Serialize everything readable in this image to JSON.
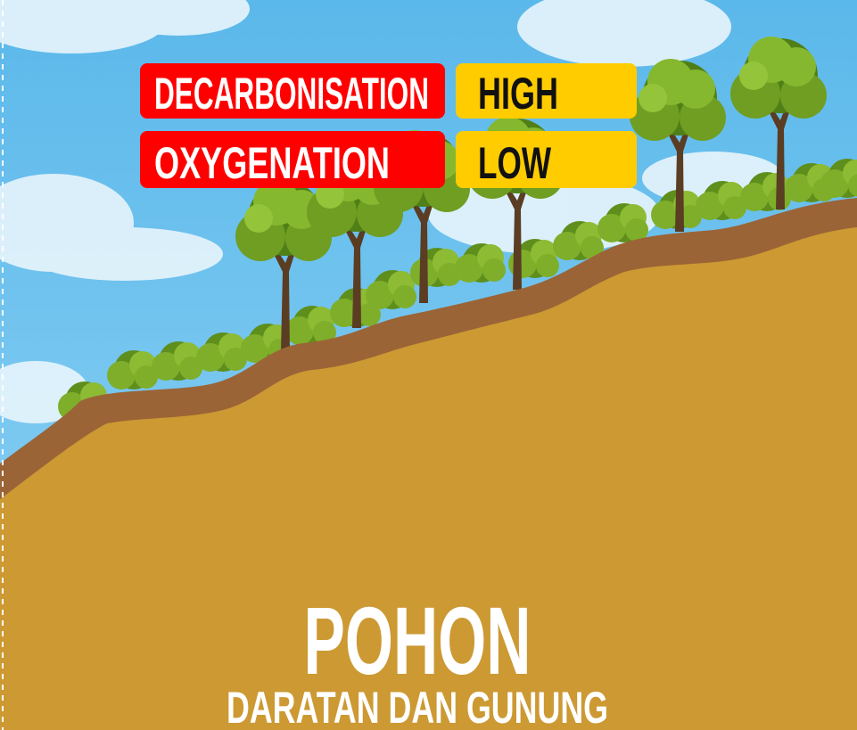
{
  "labels": [
    {
      "name": "DECARBONISATION",
      "level": "HIGH"
    },
    {
      "name": "OXYGENATION",
      "level": "LOW"
    }
  ],
  "title": "POHON",
  "subtitle": "DARATAN DAN GUNUNG"
}
